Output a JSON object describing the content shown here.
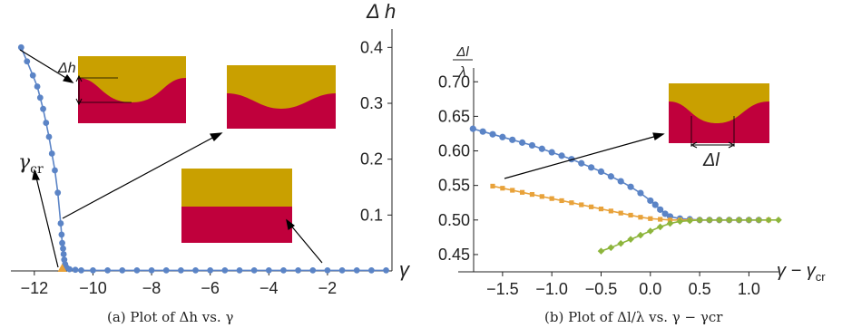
{
  "colors": {
    "gold": "#C9A000",
    "crimson": "#C0003C",
    "blue": "#5B84C6",
    "orange": "#E8A23A",
    "green": "#8DB53C",
    "arrow": "#000000"
  },
  "chart_data": [
    {
      "type": "line",
      "caption": "(a) Plot of Δh vs. γ",
      "xlabel": "γ",
      "ylabel": "Δ h",
      "xlim": [
        -12.8,
        0.2
      ],
      "ylim": [
        0,
        0.42
      ],
      "xticks": [
        -12,
        -10,
        -8,
        -6,
        -4,
        -2
      ],
      "xtick_labels": [
        "−12",
        "−10",
        "−8",
        "−6",
        "−4",
        "−2"
      ],
      "yticks": [
        0.1,
        0.2,
        0.3,
        0.4
      ],
      "ytick_labels": [
        "0.1",
        "0.2",
        "0.3",
        "0.4"
      ],
      "critical_label": "γcr",
      "critical_x": -11.05,
      "inset_label": "Δh",
      "series": [
        {
          "color": "blue",
          "points": [
            [
              -12.45,
              0.4
            ],
            [
              -12.25,
              0.375
            ],
            [
              -12.05,
              0.35
            ],
            [
              -11.9,
              0.33
            ],
            [
              -11.8,
              0.31
            ],
            [
              -11.7,
              0.29
            ],
            [
              -11.6,
              0.265
            ],
            [
              -11.5,
              0.24
            ],
            [
              -11.4,
              0.21
            ],
            [
              -11.3,
              0.18
            ],
            [
              -11.2,
              0.14
            ],
            [
              -11.1,
              0.085
            ],
            [
              -11.07,
              0.065
            ],
            [
              -11.05,
              0.05
            ],
            [
              -11.02,
              0.04
            ],
            [
              -11.0,
              0.03
            ],
            [
              -10.98,
              0.02
            ],
            [
              -10.95,
              0.012
            ],
            [
              -10.9,
              0.006
            ],
            [
              -10.8,
              0.003
            ],
            [
              -10.6,
              0.002
            ],
            [
              -10.4,
              0.001
            ],
            [
              -10.0,
              0.001
            ],
            [
              -9.5,
              0.001
            ],
            [
              -9.0,
              0.001
            ],
            [
              -8.5,
              0.001
            ],
            [
              -8.0,
              0.001
            ],
            [
              -7.5,
              0.001
            ],
            [
              -7.0,
              0.001
            ],
            [
              -6.5,
              0.001
            ],
            [
              -6.0,
              0.001
            ],
            [
              -5.5,
              0.001
            ],
            [
              -5.0,
              0.001
            ],
            [
              -4.5,
              0.001
            ],
            [
              -4.0,
              0.001
            ],
            [
              -3.5,
              0.001
            ],
            [
              -3.0,
              0.001
            ],
            [
              -2.5,
              0.001
            ],
            [
              -2.0,
              0.001
            ],
            [
              -1.5,
              0.001
            ],
            [
              -1.0,
              0.001
            ],
            [
              -0.5,
              0.001
            ],
            [
              0.0,
              0.001
            ]
          ]
        }
      ]
    },
    {
      "type": "line",
      "caption": "(b) Plot of Δl/λ vs. γ − γcr",
      "xlabel": "γ − γcr",
      "ylabel_num": "Δl",
      "ylabel_den": "λ",
      "xlim": [
        -1.95,
        1.3
      ],
      "ylim": [
        0.425,
        0.72
      ],
      "xticks": [
        -1.5,
        -1.0,
        -0.5,
        0.0,
        0.5,
        1.0
      ],
      "xtick_labels": [
        "−1.5",
        "−1.0",
        "−0.5",
        "0.0",
        "0.5",
        "1.0"
      ],
      "yticks": [
        0.45,
        0.5,
        0.55,
        0.6,
        0.65,
        0.7
      ],
      "ytick_labels": [
        "0.45",
        "0.50",
        "0.55",
        "0.60",
        "0.65",
        "0.70"
      ],
      "inset_label": "Δl",
      "series": [
        {
          "color": "blue",
          "points": [
            [
              -1.8,
              0.632
            ],
            [
              -1.7,
              0.628
            ],
            [
              -1.6,
              0.624
            ],
            [
              -1.5,
              0.62
            ],
            [
              -1.4,
              0.616
            ],
            [
              -1.3,
              0.612
            ],
            [
              -1.2,
              0.608
            ],
            [
              -1.1,
              0.603
            ],
            [
              -1.0,
              0.598
            ],
            [
              -0.9,
              0.593
            ],
            [
              -0.8,
              0.588
            ],
            [
              -0.7,
              0.582
            ],
            [
              -0.6,
              0.576
            ],
            [
              -0.5,
              0.57
            ],
            [
              -0.4,
              0.563
            ],
            [
              -0.3,
              0.556
            ],
            [
              -0.2,
              0.548
            ],
            [
              -0.1,
              0.539
            ],
            [
              0.0,
              0.528
            ],
            [
              0.05,
              0.522
            ],
            [
              0.1,
              0.515
            ],
            [
              0.15,
              0.509
            ],
            [
              0.2,
              0.505
            ],
            [
              0.3,
              0.502
            ],
            [
              0.4,
              0.501
            ],
            [
              0.5,
              0.5
            ],
            [
              0.6,
              0.5
            ],
            [
              0.7,
              0.5
            ],
            [
              0.8,
              0.5
            ],
            [
              0.9,
              0.5
            ],
            [
              1.0,
              0.5
            ],
            [
              1.1,
              0.5
            ]
          ]
        },
        {
          "color": "orange",
          "points": [
            [
              -1.6,
              0.549
            ],
            [
              -1.5,
              0.546
            ],
            [
              -1.4,
              0.543
            ],
            [
              -1.3,
              0.54
            ],
            [
              -1.2,
              0.537
            ],
            [
              -1.1,
              0.534
            ],
            [
              -1.0,
              0.531
            ],
            [
              -0.9,
              0.528
            ],
            [
              -0.8,
              0.525
            ],
            [
              -0.7,
              0.522
            ],
            [
              -0.6,
              0.519
            ],
            [
              -0.5,
              0.516
            ],
            [
              -0.4,
              0.513
            ],
            [
              -0.3,
              0.51
            ],
            [
              -0.2,
              0.507
            ],
            [
              -0.1,
              0.504
            ],
            [
              0.0,
              0.502
            ],
            [
              0.1,
              0.501
            ],
            [
              0.2,
              0.5
            ],
            [
              0.3,
              0.5
            ],
            [
              0.4,
              0.5
            ],
            [
              0.5,
              0.5
            ],
            [
              0.6,
              0.5
            ],
            [
              0.7,
              0.5
            ],
            [
              0.8,
              0.5
            ],
            [
              0.9,
              0.5
            ],
            [
              1.0,
              0.5
            ],
            [
              1.1,
              0.5
            ],
            [
              1.2,
              0.5
            ]
          ]
        },
        {
          "color": "green",
          "points": [
            [
              -0.5,
              0.455
            ],
            [
              -0.4,
              0.46
            ],
            [
              -0.3,
              0.466
            ],
            [
              -0.2,
              0.472
            ],
            [
              -0.1,
              0.478
            ],
            [
              0.0,
              0.484
            ],
            [
              0.1,
              0.49
            ],
            [
              0.2,
              0.495
            ],
            [
              0.3,
              0.498
            ],
            [
              0.4,
              0.499
            ],
            [
              0.5,
              0.5
            ],
            [
              0.6,
              0.5
            ],
            [
              0.7,
              0.5
            ],
            [
              0.8,
              0.5
            ],
            [
              0.9,
              0.5
            ],
            [
              1.0,
              0.5
            ],
            [
              1.1,
              0.5
            ],
            [
              1.2,
              0.5
            ],
            [
              1.3,
              0.5
            ]
          ]
        }
      ]
    }
  ]
}
